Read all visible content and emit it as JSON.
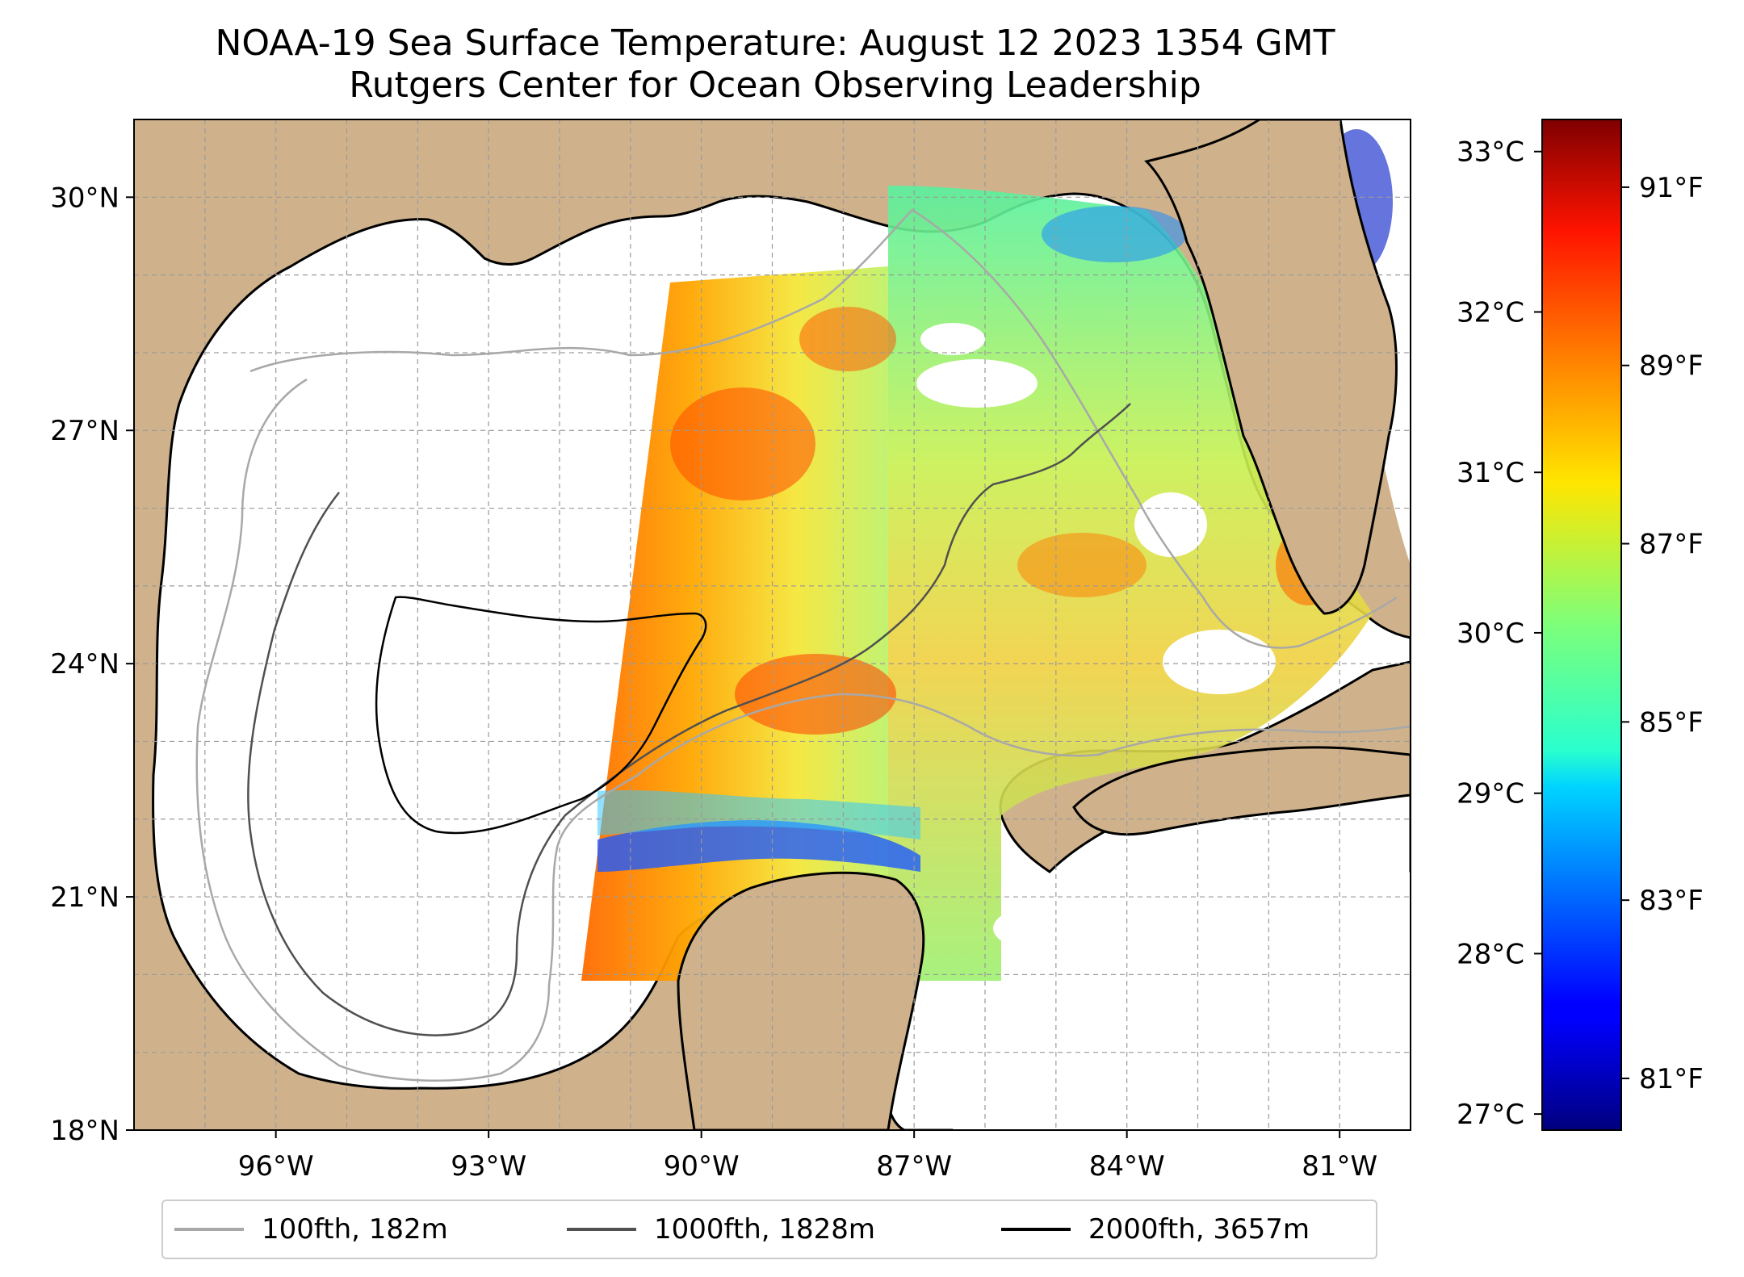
{
  "title": {
    "line1": "NOAA-19 Sea Surface Temperature: August 12 2023 1354 GMT",
    "line2": "Rutgers Center for Ocean Observing Leadership"
  },
  "map": {
    "lon_range": [
      -98,
      -80
    ],
    "lat_range": [
      18,
      31
    ],
    "lon_ticks": [
      {
        "value": -96,
        "label": "96°W"
      },
      {
        "value": -93,
        "label": "93°W"
      },
      {
        "value": -90,
        "label": "90°W"
      },
      {
        "value": -87,
        "label": "87°W"
      },
      {
        "value": -84,
        "label": "84°W"
      },
      {
        "value": -81,
        "label": "81°W"
      }
    ],
    "lat_ticks": [
      {
        "value": 30,
        "label": "30°N"
      },
      {
        "value": 27,
        "label": "27°N"
      },
      {
        "value": 24,
        "label": "24°N"
      },
      {
        "value": 21,
        "label": "21°N"
      },
      {
        "value": 18,
        "label": "18°N"
      }
    ],
    "grid": true,
    "land_color": "#cfb28b",
    "water_color": "#ffffff"
  },
  "colorbar": {
    "colormap": "jet",
    "celsius_ticks": [
      {
        "value": 27,
        "label": "27°C"
      },
      {
        "value": 28,
        "label": "28°C"
      },
      {
        "value": 29,
        "label": "29°C"
      },
      {
        "value": 30,
        "label": "30°C"
      },
      {
        "value": 31,
        "label": "31°C"
      },
      {
        "value": 32,
        "label": "32°C"
      },
      {
        "value": 33,
        "label": "33°C"
      }
    ],
    "fahrenheit_ticks": [
      {
        "value": 81,
        "label": "81°F"
      },
      {
        "value": 83,
        "label": "83°F"
      },
      {
        "value": 85,
        "label": "85°F"
      },
      {
        "value": 87,
        "label": "87°F"
      },
      {
        "value": 89,
        "label": "89°F"
      },
      {
        "value": 91,
        "label": "91°F"
      }
    ],
    "range_celsius": [
      26.9,
      33.2
    ]
  },
  "legend": {
    "entries": [
      {
        "label": "100fth, 182m",
        "color": "#a8a8a8"
      },
      {
        "label": "1000fth, 1828m",
        "color": "#505050"
      },
      {
        "label": "2000fth, 3657m",
        "color": "#000000"
      }
    ]
  }
}
